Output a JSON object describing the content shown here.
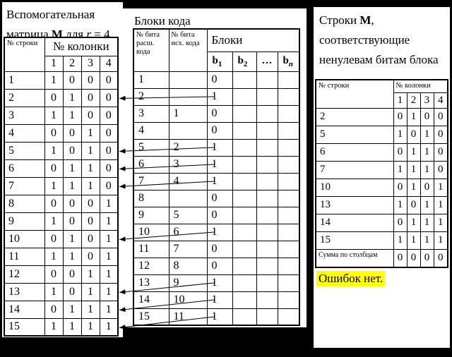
{
  "colors": {
    "background": "#000000",
    "panel": "#ffffff",
    "text": "#000000",
    "highlight": "#ffff00"
  },
  "left_panel": {
    "title": {
      "pre": "Вспомогательная матрица ",
      "bold": "М",
      "mid": " для ",
      "italic": "r",
      "post": " = 4"
    },
    "table": {
      "row_header": "№ строки",
      "col_group_header": "№ колонки",
      "col_labels": [
        "1",
        "2",
        "3",
        "4"
      ],
      "rows": [
        {
          "n": "1",
          "bits": [
            "1",
            "0",
            "0",
            "0"
          ]
        },
        {
          "n": "2",
          "bits": [
            "0",
            "1",
            "0",
            "0"
          ]
        },
        {
          "n": "3",
          "bits": [
            "1",
            "1",
            "0",
            "0"
          ]
        },
        {
          "n": "4",
          "bits": [
            "0",
            "0",
            "1",
            "0"
          ]
        },
        {
          "n": "5",
          "bits": [
            "1",
            "0",
            "1",
            "0"
          ]
        },
        {
          "n": "6",
          "bits": [
            "0",
            "1",
            "1",
            "0"
          ]
        },
        {
          "n": "7",
          "bits": [
            "1",
            "1",
            "1",
            "0"
          ]
        },
        {
          "n": "8",
          "bits": [
            "0",
            "0",
            "0",
            "1"
          ]
        },
        {
          "n": "9",
          "bits": [
            "1",
            "0",
            "0",
            "1"
          ]
        },
        {
          "n": "10",
          "bits": [
            "0",
            "1",
            "0",
            "1"
          ]
        },
        {
          "n": "11",
          "bits": [
            "1",
            "1",
            "0",
            "1"
          ]
        },
        {
          "n": "12",
          "bits": [
            "0",
            "0",
            "1",
            "1"
          ]
        },
        {
          "n": "13",
          "bits": [
            "1",
            "0",
            "1",
            "1"
          ]
        },
        {
          "n": "14",
          "bits": [
            "0",
            "1",
            "1",
            "1"
          ]
        },
        {
          "n": "15",
          "bits": [
            "1",
            "1",
            "1",
            "1"
          ]
        }
      ]
    }
  },
  "middle_panel": {
    "title": "Блоки кода",
    "table": {
      "ext_bit_header": "№ бита расш. кода",
      "src_bit_header": "№ бита исх. кода",
      "blocks_header": "Блоки",
      "block_cols": [
        {
          "base": "b",
          "sub": "1"
        },
        {
          "base": "b",
          "sub": "2"
        },
        {
          "base": "…",
          "sub": ""
        },
        {
          "base": "b",
          "sub": "n"
        }
      ],
      "rows": [
        {
          "ext": "1",
          "src": "",
          "b1": "0"
        },
        {
          "ext": "2",
          "src": "",
          "b1": "1"
        },
        {
          "ext": "3",
          "src": "1",
          "b1": "0"
        },
        {
          "ext": "4",
          "src": "",
          "b1": "0"
        },
        {
          "ext": "5",
          "src": "2",
          "b1": "1"
        },
        {
          "ext": "6",
          "src": "3",
          "b1": "1"
        },
        {
          "ext": "7",
          "src": "4",
          "b1": "1"
        },
        {
          "ext": "8",
          "src": "",
          "b1": "0"
        },
        {
          "ext": "9",
          "src": "5",
          "b1": "0"
        },
        {
          "ext": "10",
          "src": "6",
          "b1": "1"
        },
        {
          "ext": "11",
          "src": "7",
          "b1": "0"
        },
        {
          "ext": "12",
          "src": "8",
          "b1": "0"
        },
        {
          "ext": "13",
          "src": "9",
          "b1": "1"
        },
        {
          "ext": "14",
          "src": "10",
          "b1": "1"
        },
        {
          "ext": "15",
          "src": "11",
          "b1": "1"
        }
      ]
    }
  },
  "right_panel": {
    "title": {
      "pre": "Строки ",
      "bold": "М",
      "post": ", соответствующие ненулевам битам блока"
    },
    "table": {
      "row_header": "№ строки",
      "col_group_header": "№ колонки",
      "col_labels": [
        "1",
        "2",
        "3",
        "4"
      ],
      "rows": [
        {
          "n": "2",
          "bits": [
            "0",
            "1",
            "0",
            "0"
          ]
        },
        {
          "n": "5",
          "bits": [
            "1",
            "0",
            "1",
            "0"
          ]
        },
        {
          "n": "6",
          "bits": [
            "0",
            "1",
            "1",
            "0"
          ]
        },
        {
          "n": "7",
          "bits": [
            "1",
            "1",
            "1",
            "0"
          ]
        },
        {
          "n": "10",
          "bits": [
            "0",
            "1",
            "0",
            "1"
          ]
        },
        {
          "n": "13",
          "bits": [
            "1",
            "0",
            "1",
            "1"
          ]
        },
        {
          "n": "14",
          "bits": [
            "0",
            "1",
            "1",
            "1"
          ]
        },
        {
          "n": "15",
          "bits": [
            "1",
            "1",
            "1",
            "1"
          ]
        }
      ],
      "sum_label": "Сумма по столбцам",
      "sum_values": [
        "0",
        "0",
        "0",
        "0"
      ]
    },
    "result_text": "Ошибок нет."
  },
  "arrows": {
    "connected_rows": [
      2,
      5,
      6,
      7,
      10,
      13,
      14,
      15
    ]
  }
}
